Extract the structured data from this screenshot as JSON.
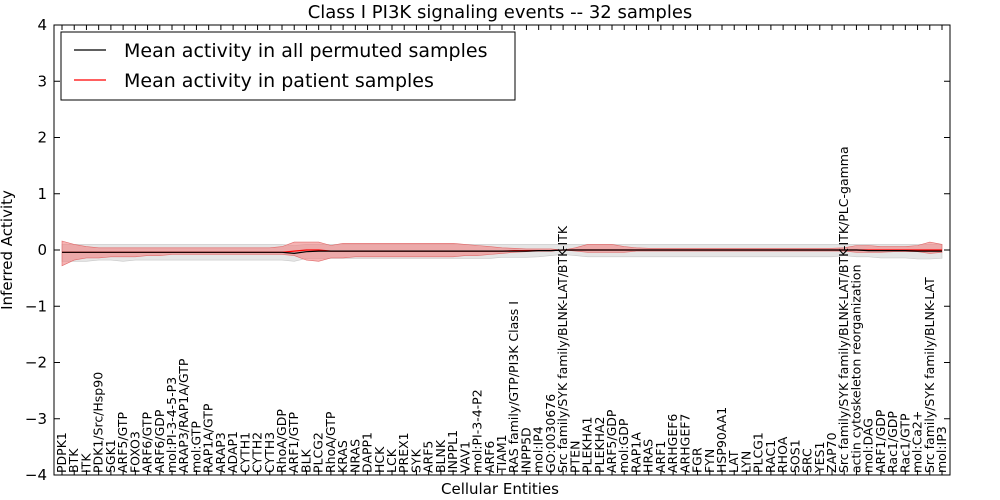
{
  "chart_data": {
    "type": "line",
    "title": "Class I PI3K signaling events -- 32 samples",
    "xlabel": "Cellular Entities",
    "ylabel": "Inferred Activity",
    "ylim": [
      -4,
      4
    ],
    "yticks": [
      -4,
      -3,
      -2,
      -1,
      0,
      1,
      2,
      3,
      4
    ],
    "ytick_labels": [
      "−4",
      "−3",
      "−2",
      "−1",
      "0",
      "1",
      "2",
      "3",
      "4"
    ],
    "grid": false,
    "legend_position": "top-left",
    "categories": [
      "PDPK1",
      "BTK",
      "ITK",
      "PDK1/Src/Hsp90",
      "SGK1",
      "ARF5/GTP",
      "FOXO3",
      "ARF6/GTP",
      "ARF6/GDP",
      "mol:PI-3-4-5-P3",
      "ARAP3/RAP1A/GTP",
      "mol:GTP",
      "RAP1A/GTP",
      "ARAP3",
      "ADAP1",
      "CYTH1",
      "CYTH2",
      "CYTH3",
      "RhoA/GDP",
      "ARF1/GTP",
      "BLK",
      "PLCG2",
      "RhoA/GTP",
      "KRAS",
      "NRAS",
      "DAPP1",
      "HCK",
      "LCK",
      "PREX1",
      "SYK",
      "ARF5",
      "BLNK",
      "INPPL1",
      "VAV1",
      "mol:PI-3-4-P2",
      "ARF6",
      "TIAM1",
      "RAS family/GTP/PI3K Class I",
      "INPP5D",
      "mol:IP4",
      "GO:0030676",
      "Src family/SYK family/BLNK-LAT/BTK-ITK",
      "PTEN",
      "PLEKHA1",
      "PLEKHA2",
      "ARF5/GDP",
      "mol:GDP",
      "RAP1A",
      "HRAS",
      "ARF1",
      "ARHGEF6",
      "ARHGEF7",
      "FGR",
      "FYN",
      "HSP90AA1",
      "LAT",
      "LYN",
      "PLCG1",
      "RAC1",
      "RHOA",
      "SOS1",
      "SRC",
      "YES1",
      "ZAP70",
      "Src family/SYK family/BLNK-LAT/BTK-ITK/PLC-gamma",
      "actin cytoskeleton reorganization",
      "mol:DAG",
      "ARF1/GDP",
      "Rac1/GDP",
      "Rac1/GTP",
      "mol:Ca2+",
      "Src family/SYK family/BLNK-LAT",
      "mol:IP3"
    ],
    "series": [
      {
        "name": "Mean activity in all permuted samples",
        "color": "#000000",
        "values": [
          -0.04,
          -0.04,
          -0.04,
          -0.04,
          -0.04,
          -0.04,
          -0.04,
          -0.04,
          -0.04,
          -0.04,
          -0.04,
          -0.04,
          -0.04,
          -0.04,
          -0.04,
          -0.04,
          -0.04,
          -0.04,
          -0.04,
          -0.06,
          -0.03,
          -0.02,
          -0.02,
          -0.02,
          -0.02,
          -0.02,
          -0.02,
          -0.02,
          -0.02,
          -0.02,
          -0.02,
          -0.02,
          -0.02,
          -0.02,
          -0.02,
          -0.02,
          -0.02,
          -0.02,
          -0.02,
          -0.01,
          -0.01,
          0.0,
          0.0,
          0.0,
          0.0,
          0.0,
          0.0,
          0.0,
          0.0,
          0.0,
          0.0,
          0.0,
          0.0,
          0.0,
          0.0,
          0.0,
          0.0,
          0.0,
          0.0,
          0.0,
          0.0,
          0.0,
          0.0,
          0.0,
          0.0,
          0.0,
          -0.01,
          -0.01,
          -0.01,
          -0.01,
          -0.02,
          -0.02,
          -0.02
        ],
        "band_low": [
          -0.2,
          -0.2,
          -0.2,
          -0.18,
          -0.18,
          -0.2,
          -0.18,
          -0.18,
          -0.18,
          -0.18,
          -0.18,
          -0.18,
          -0.18,
          -0.18,
          -0.18,
          -0.18,
          -0.18,
          -0.18,
          -0.18,
          -0.2,
          -0.15,
          -0.15,
          -0.15,
          -0.15,
          -0.15,
          -0.15,
          -0.15,
          -0.15,
          -0.15,
          -0.15,
          -0.15,
          -0.15,
          -0.15,
          -0.15,
          -0.15,
          -0.15,
          -0.13,
          -0.13,
          -0.13,
          -0.12,
          -0.1,
          -0.08,
          -0.1,
          -0.12,
          -0.12,
          -0.12,
          -0.12,
          -0.12,
          -0.12,
          -0.12,
          -0.12,
          -0.12,
          -0.12,
          -0.12,
          -0.12,
          -0.12,
          -0.12,
          -0.12,
          -0.12,
          -0.12,
          -0.12,
          -0.12,
          -0.12,
          -0.12,
          -0.1,
          -0.12,
          -0.12,
          -0.14,
          -0.14,
          -0.14,
          -0.16,
          -0.16,
          -0.15
        ],
        "band_high": [
          0.1,
          0.1,
          0.1,
          0.1,
          0.1,
          0.1,
          0.1,
          0.1,
          0.1,
          0.1,
          0.1,
          0.1,
          0.1,
          0.1,
          0.1,
          0.1,
          0.1,
          0.1,
          0.1,
          0.08,
          0.1,
          0.1,
          0.1,
          0.1,
          0.1,
          0.1,
          0.1,
          0.1,
          0.1,
          0.1,
          0.1,
          0.1,
          0.1,
          0.1,
          0.1,
          0.1,
          0.1,
          0.1,
          0.1,
          0.1,
          0.1,
          0.1,
          0.1,
          0.1,
          0.1,
          0.1,
          0.1,
          0.1,
          0.1,
          0.1,
          0.1,
          0.1,
          0.1,
          0.1,
          0.1,
          0.1,
          0.1,
          0.1,
          0.1,
          0.1,
          0.1,
          0.1,
          0.1,
          0.1,
          0.1,
          0.1,
          0.1,
          0.1,
          0.1,
          0.1,
          0.1,
          0.1,
          0.1
        ]
      },
      {
        "name": "Mean activity in patient samples",
        "color": "#ff0000",
        "values": [
          -0.04,
          -0.04,
          -0.04,
          -0.04,
          -0.04,
          -0.04,
          -0.04,
          -0.04,
          -0.04,
          -0.04,
          -0.04,
          -0.04,
          -0.04,
          -0.04,
          -0.04,
          -0.04,
          -0.04,
          -0.04,
          -0.04,
          -0.02,
          0.0,
          0.0,
          -0.02,
          -0.02,
          -0.02,
          -0.02,
          -0.02,
          -0.02,
          -0.02,
          -0.02,
          -0.02,
          -0.02,
          -0.02,
          -0.02,
          -0.02,
          -0.02,
          -0.02,
          -0.01,
          -0.01,
          -0.01,
          -0.01,
          0.0,
          0.0,
          0.0,
          0.0,
          0.0,
          0.0,
          0.0,
          0.0,
          0.0,
          0.0,
          0.0,
          0.0,
          0.0,
          0.0,
          0.0,
          0.0,
          0.0,
          0.0,
          0.0,
          0.0,
          0.0,
          0.0,
          0.0,
          0.0,
          0.0,
          0.0,
          0.0,
          0.0,
          0.0,
          0.0,
          0.0,
          0.0
        ],
        "band_low": [
          -0.28,
          -0.18,
          -0.14,
          -0.14,
          -0.12,
          -0.12,
          -0.12,
          -0.1,
          -0.1,
          -0.08,
          -0.08,
          -0.08,
          -0.08,
          -0.08,
          -0.08,
          -0.08,
          -0.08,
          -0.08,
          -0.08,
          -0.1,
          -0.18,
          -0.2,
          -0.14,
          -0.14,
          -0.12,
          -0.12,
          -0.12,
          -0.12,
          -0.12,
          -0.12,
          -0.12,
          -0.12,
          -0.12,
          -0.1,
          -0.1,
          -0.08,
          -0.06,
          -0.04,
          -0.03,
          -0.02,
          -0.02,
          0.0,
          -0.02,
          -0.04,
          -0.04,
          -0.04,
          -0.04,
          -0.02,
          -0.02,
          -0.02,
          -0.02,
          -0.02,
          -0.02,
          -0.02,
          -0.02,
          -0.02,
          -0.02,
          -0.02,
          -0.02,
          -0.02,
          -0.02,
          -0.02,
          -0.02,
          -0.02,
          -0.02,
          -0.04,
          -0.04,
          -0.04,
          -0.03,
          -0.03,
          -0.03,
          -0.06,
          -0.04
        ],
        "band_high": [
          0.16,
          0.1,
          0.06,
          0.04,
          0.04,
          0.04,
          0.04,
          0.04,
          0.04,
          0.04,
          0.04,
          0.04,
          0.04,
          0.04,
          0.04,
          0.04,
          0.04,
          0.04,
          0.06,
          0.14,
          0.14,
          0.14,
          0.08,
          0.12,
          0.12,
          0.12,
          0.12,
          0.12,
          0.12,
          0.12,
          0.12,
          0.12,
          0.12,
          0.1,
          0.08,
          0.06,
          0.04,
          0.03,
          0.02,
          0.02,
          0.02,
          0.0,
          0.04,
          0.1,
          0.1,
          0.1,
          0.06,
          0.04,
          0.03,
          0.03,
          0.03,
          0.03,
          0.03,
          0.03,
          0.03,
          0.03,
          0.03,
          0.03,
          0.03,
          0.03,
          0.03,
          0.03,
          0.03,
          0.03,
          0.04,
          0.08,
          0.08,
          0.06,
          0.06,
          0.06,
          0.08,
          0.14,
          0.1
        ]
      }
    ]
  }
}
